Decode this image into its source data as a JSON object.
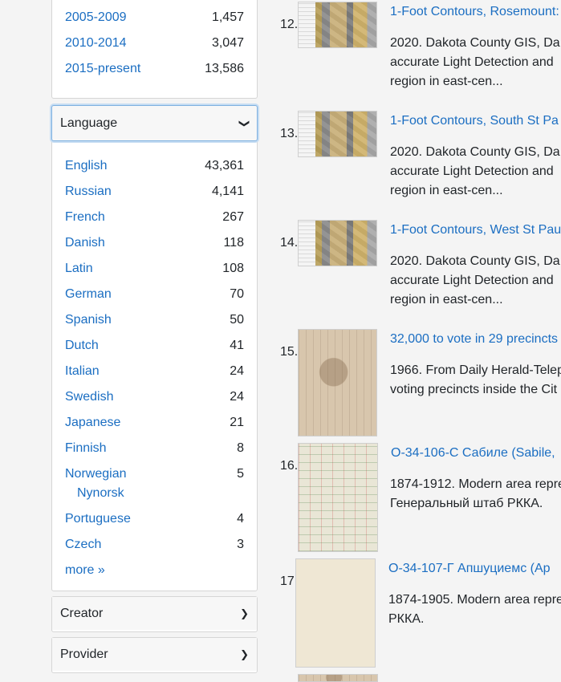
{
  "date_facet": {
    "items": [
      {
        "label": "2005-2009",
        "count": "1,457"
      },
      {
        "label": "2010-2014",
        "count": "3,047"
      },
      {
        "label": "2015-present",
        "count": "13,586"
      }
    ]
  },
  "language_facet": {
    "title": "Language",
    "chevron": "❯",
    "items": [
      {
        "label": "English",
        "count": "43,361"
      },
      {
        "label": "Russian",
        "count": "4,141"
      },
      {
        "label": "French",
        "count": "267"
      },
      {
        "label": "Danish",
        "count": "118"
      },
      {
        "label": "Latin",
        "count": "108"
      },
      {
        "label": "German",
        "count": "70"
      },
      {
        "label": "Spanish",
        "count": "50"
      },
      {
        "label": "Dutch",
        "count": "41"
      },
      {
        "label": "Italian",
        "count": "24"
      },
      {
        "label": "Swedish",
        "count": "24"
      },
      {
        "label": "Japanese",
        "count": "21"
      },
      {
        "label": "Finnish",
        "count": "8"
      },
      {
        "label_line1": "Norwegian",
        "label_line2": "Nynorsk",
        "count": "5"
      },
      {
        "label": "Portuguese",
        "count": "4"
      },
      {
        "label": "Czech",
        "count": "3"
      }
    ],
    "more": "more »"
  },
  "creator_facet": {
    "title": "Creator",
    "chevron": "❯"
  },
  "provider_facet": {
    "title": "Provider",
    "chevron": "❯"
  },
  "results": [
    {
      "number": "12.",
      "title": "1-Foot Contours, Rosemount:",
      "desc_line1": "2020. Dakota County GIS, Da",
      "desc_line2": "accurate Light Detection and",
      "desc_line3": "region in east-cen..."
    },
    {
      "number": "13.",
      "title": "1-Foot Contours, South St Pa",
      "desc_line1": "2020. Dakota County GIS, Da",
      "desc_line2": "accurate Light Detection and",
      "desc_line3": "region in east-cen..."
    },
    {
      "number": "14.",
      "title": "1-Foot Contours, West St Pau",
      "desc_line1": "2020. Dakota County GIS, Da",
      "desc_line2": "accurate Light Detection and",
      "desc_line3": "region in east-cen..."
    },
    {
      "number": "15.",
      "title": "32,000 to vote in 29 precincts",
      "desc_line1": "1966. From Daily Herald-Telep",
      "desc_line2": "voting precincts inside the Cit"
    },
    {
      "number": "16.",
      "title": "O-34-106-С Сабиле (Sabile,",
      "desc_line1": "1874-1912. Modern area repre",
      "desc_line2": "Генеральный штаб РККА."
    },
    {
      "number": "17.",
      "title": "O-34-107-Г Апшуциемс (Ap",
      "desc_line1": "1874-1905. Modern area repre",
      "desc_line2": "РККА."
    }
  ]
}
